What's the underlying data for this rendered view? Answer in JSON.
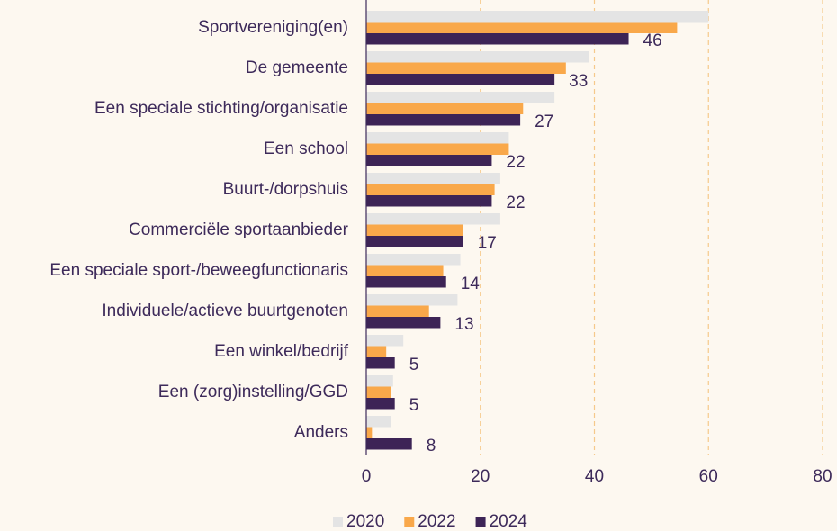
{
  "chart_data": {
    "type": "barh",
    "categories": [
      "Sportvereniging(en)",
      "De gemeente",
      "Een speciale stichting/organisatie",
      "Een school",
      "Buurt-/dorpshuis",
      "Commerciële sportaanbieder",
      "Een speciale sport-/beweegfunctionaris",
      "Individuele/actieve buurtgenoten",
      "Een winkel/bedrijf",
      "Een (zorg)instelling/GGD",
      "Anders"
    ],
    "series": [
      {
        "name": "2020",
        "color": "#e4e4e4",
        "values": [
          60,
          39,
          33,
          25,
          23.5,
          23.5,
          16.5,
          16,
          6.5,
          4.7,
          4.4
        ]
      },
      {
        "name": "2022",
        "color": "#f9a84a",
        "values": [
          54.5,
          35,
          27.5,
          25,
          22.5,
          17,
          13.5,
          11,
          3.5,
          4.4,
          1
        ]
      },
      {
        "name": "2024",
        "color": "#3d2456",
        "values": [
          46,
          33,
          27,
          22,
          22,
          17,
          14,
          13,
          5,
          5,
          8
        ],
        "data_labels": true
      }
    ],
    "xlim": [
      0,
      80
    ],
    "xticks": [
      0,
      20,
      40,
      60,
      80
    ],
    "grid": true,
    "legend": "bottom"
  }
}
